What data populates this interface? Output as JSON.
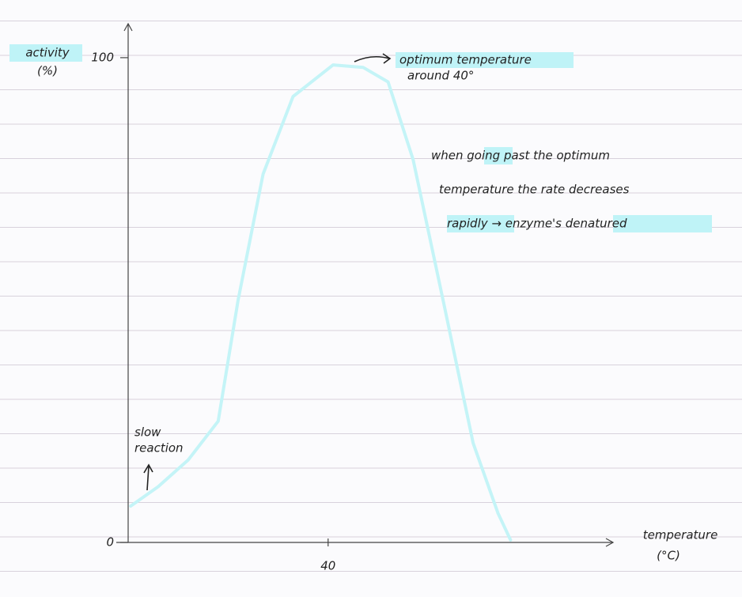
{
  "chart_data": {
    "type": "line",
    "xlabel": [
      "temperature",
      "(°C)"
    ],
    "ylabel": [
      "activity",
      "(%)"
    ],
    "x": [
      0.5,
      6,
      12,
      18,
      22,
      27,
      33,
      41,
      47,
      52,
      57,
      63,
      69,
      74,
      76.5
    ],
    "series": [
      {
        "color": "#c4f4f7",
        "values": [
          7.5,
          11.5,
          17,
          25,
          50,
          76,
          92,
          98.5,
          98,
          95,
          79,
          50,
          20.5,
          6,
          0.5
        ]
      }
    ],
    "xlim": [
      0,
      97
    ],
    "xticks": [
      40
    ],
    "ylim": [
      0,
      107
    ],
    "yticks": [
      0,
      100
    ],
    "annotations": [
      "optimum temperature",
      "around 40°",
      "when going past the optimum",
      "temperature the rate decreases",
      "rapidly → enzyme's denatured",
      "slow",
      "reaction"
    ]
  }
}
